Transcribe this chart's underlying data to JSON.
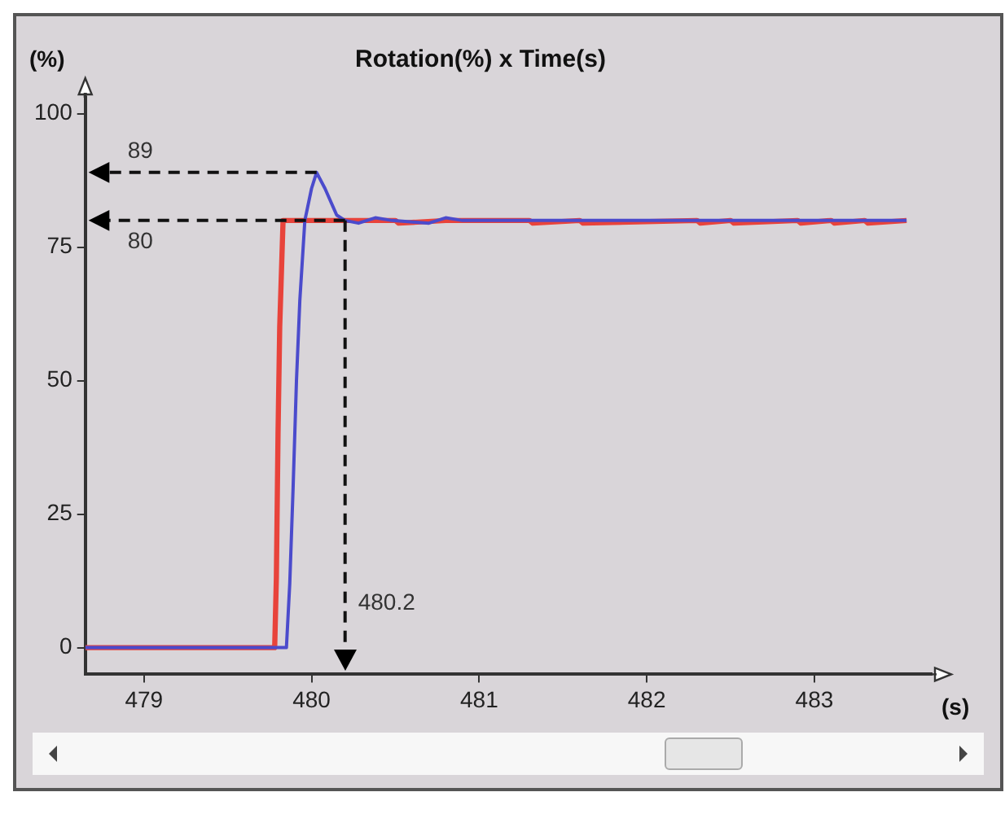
{
  "chart_data": {
    "type": "line",
    "title": "Rotation(%) x Time(s)",
    "xlabel": "(s)",
    "ylabel": "(%)",
    "xlim": [
      478.65,
      483.7
    ],
    "ylim": [
      -5,
      103
    ],
    "xticks": [
      479,
      480,
      481,
      482,
      483
    ],
    "yticks": [
      0,
      25,
      50,
      75,
      100
    ],
    "grid": false,
    "legend": false,
    "marker": "none",
    "line_style": "solid",
    "series": [
      {
        "color": "#e8433b",
        "x": [
          478.65,
          479.78,
          479.79,
          479.8,
          479.81,
          479.83,
          480.2,
          480.5,
          480.52,
          480.8,
          480.82,
          481.3,
          481.32,
          481.6,
          481.62,
          482.3,
          482.32,
          482.5,
          482.52,
          482.9,
          482.92,
          483.1,
          483.12,
          483.3,
          483.32,
          483.55
        ],
        "values": [
          0,
          0,
          13,
          40,
          60,
          80,
          80,
          80,
          79.5,
          80,
          80,
          80,
          79.5,
          80,
          79.5,
          80,
          79.5,
          80,
          79.5,
          80,
          79.5,
          80,
          79.5,
          80,
          79.5,
          80
        ]
      },
      {
        "color": "#4b4bcc",
        "x": [
          478.65,
          479.85,
          479.87,
          479.89,
          479.91,
          479.93,
          479.96,
          480.0,
          480.03,
          480.08,
          480.15,
          480.2,
          480.28,
          480.38,
          480.48,
          480.7,
          480.8,
          480.9,
          481.1,
          481.5,
          482.0,
          482.5,
          483.0,
          483.55
        ],
        "values": [
          0,
          0,
          12,
          30,
          50,
          65,
          80,
          86,
          89,
          86,
          81,
          80,
          79.5,
          80.5,
          80,
          79.5,
          80.5,
          80,
          80,
          80,
          80,
          80,
          80,
          80
        ]
      }
    ],
    "annotations": [
      {
        "text": "89",
        "x": 480.03,
        "y": 89
      },
      {
        "text": "80",
        "x": 480.2,
        "y": 80
      }
    ],
    "ref_lines": [
      {
        "axis": "x",
        "value": 480.2,
        "label": "480.2",
        "line_style": "dashed"
      }
    ]
  }
}
